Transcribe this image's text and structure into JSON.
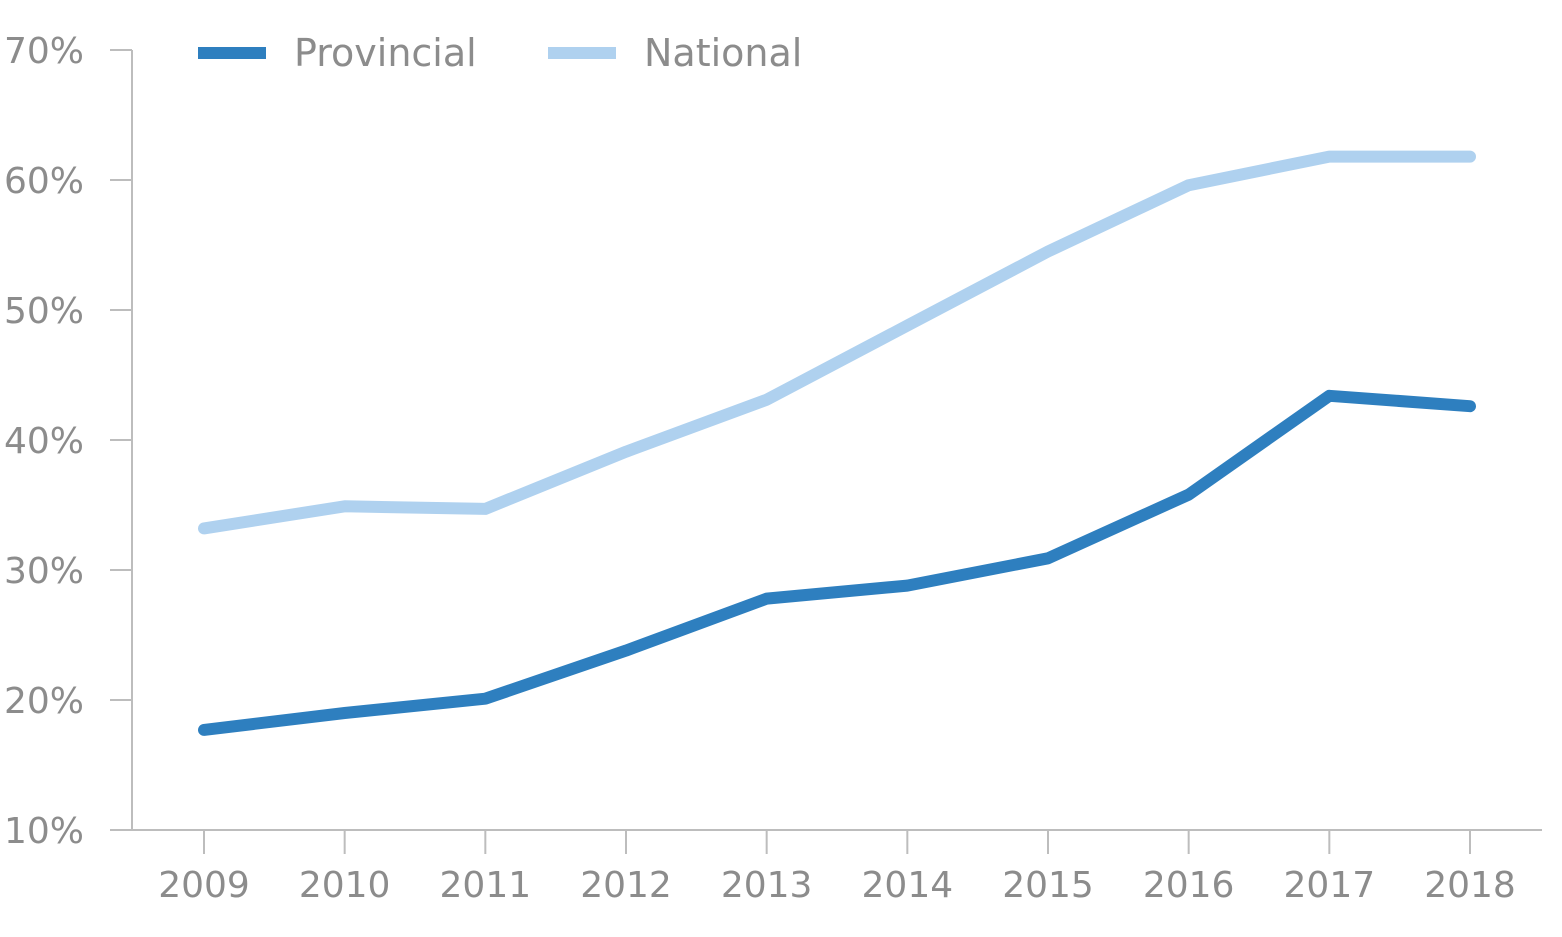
{
  "chart_data": {
    "type": "line",
    "title": "",
    "xlabel": "",
    "ylabel": "",
    "categories": [
      "2009",
      "2010",
      "2011",
      "2012",
      "2013",
      "2014",
      "2015",
      "2016",
      "2017",
      "2018"
    ],
    "series": [
      {
        "name": "Provincial",
        "color": "#2e7fbf",
        "values": [
          17.7,
          19.0,
          20.1,
          23.8,
          27.8,
          28.8,
          30.9,
          35.8,
          43.4,
          42.6
        ]
      },
      {
        "name": "National",
        "color": "#afd1ef",
        "values": [
          33.2,
          34.9,
          34.7,
          39.1,
          43.1,
          48.8,
          54.5,
          59.6,
          61.8,
          61.8
        ]
      }
    ],
    "ylim": [
      10,
      70
    ],
    "yticks": [
      10,
      20,
      30,
      40,
      50,
      60,
      70
    ],
    "ytick_labels": [
      "10%",
      "20%",
      "30%",
      "40%",
      "50%",
      "60%",
      "70%"
    ],
    "grid": false,
    "legend_position": "top-left"
  }
}
